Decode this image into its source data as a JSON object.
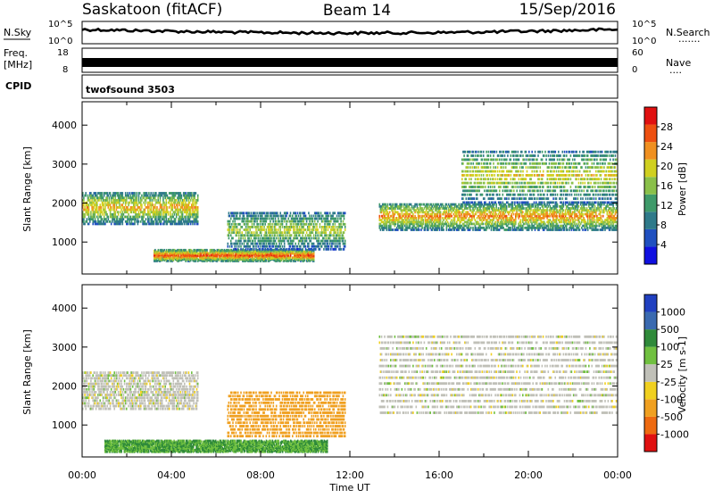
{
  "header": {
    "station": "Saskatoon (fitACF)",
    "beam": "Beam 14",
    "date": "15/Sep/2016"
  },
  "noise_panel": {
    "left_label": "N.Sky",
    "left_ticks": [
      "10^5",
      "10^0"
    ],
    "right_ticks": [
      "10^5",
      "10^0"
    ],
    "right_label": "N.Search",
    "right_dots": "·······"
  },
  "freq_panel": {
    "left_label_1": "Freq.",
    "left_label_2": "[MHz]",
    "left_ticks": [
      "18",
      "8"
    ],
    "right_ticks": [
      "60",
      "0"
    ],
    "right_label": "Nave",
    "right_dots": "····"
  },
  "cpid_panel": {
    "label": "CPID",
    "mode": "twofsound 3503"
  },
  "power_panel": {
    "ylabel": "Slant Range [km]",
    "yticks": [
      "4000",
      "3000",
      "2000",
      "1000"
    ],
    "colorbar_label": "Power [dB]",
    "colorbar_ticks": [
      "28",
      "24",
      "20",
      "16",
      "12",
      "8",
      "4"
    ],
    "colors": [
      "#1010e0",
      "#2050c0",
      "#2f7a8a",
      "#3f9a6a",
      "#8ac04a",
      "#d0d020",
      "#f09020",
      "#ee5010",
      "#e01010"
    ]
  },
  "velocity_panel": {
    "ylabel": "Slant Range [km]",
    "yticks": [
      "4000",
      "3000",
      "2000",
      "1000"
    ],
    "colorbar_label": "Velocity [m s-1]",
    "colorbar_ticks": [
      "1000",
      "500",
      "100",
      "25",
      "-25",
      "-100",
      "-500",
      "-1000"
    ],
    "colors": [
      "#2040c0",
      "#3a6ab0",
      "#2f8a3a",
      "#70c040",
      "#c0c0b8",
      "#f0d020",
      "#f0a020",
      "#ee6a10",
      "#e01010"
    ]
  },
  "xaxis": {
    "ticks": [
      "00:00",
      "04:00",
      "08:00",
      "12:00",
      "16:00",
      "20:00",
      "00:00"
    ],
    "label": "Time UT"
  },
  "chart_data": {
    "type": "heatmap",
    "title": "Saskatoon (fitACF)  Beam 14  15/Sep/2016",
    "xlabel": "Time UT",
    "xlim": [
      "00:00",
      "24:00"
    ],
    "ylabel": "Slant Range [km]",
    "ylim": [
      180,
      4600
    ],
    "power": {
      "label": "Power [dB]",
      "crange": [
        0,
        32
      ],
      "bands": [
        {
          "t_start": 0.0,
          "t_end": 5.2,
          "range_start": 1450,
          "range_end": 2300,
          "peak_db": 22
        },
        {
          "t_start": 3.2,
          "t_end": 10.4,
          "range_start": 500,
          "range_end": 800,
          "peak_db": 28
        },
        {
          "t_start": 6.5,
          "t_end": 11.8,
          "range_start": 800,
          "range_end": 1800,
          "peak_db": 18
        },
        {
          "t_start": 13.3,
          "t_end": 24.0,
          "range_start": 1300,
          "range_end": 2000,
          "peak_db": 24
        },
        {
          "t_start": 17.0,
          "t_end": 24.0,
          "range_start": 2000,
          "range_end": 3400,
          "peak_db": 20
        }
      ]
    },
    "velocity": {
      "label": "Velocity [m s-1]",
      "crange": [
        -1000,
        1000
      ],
      "bands": [
        {
          "t_start": 0.0,
          "t_end": 5.2,
          "range_start": 1400,
          "range_end": 2400,
          "velocity": 0
        },
        {
          "t_start": 1.0,
          "t_end": 11.0,
          "range_start": 300,
          "range_end": 600,
          "velocity": 100
        },
        {
          "t_start": 6.5,
          "t_end": 11.8,
          "range_start": 700,
          "range_end": 1900,
          "velocity": -400
        },
        {
          "t_start": 13.3,
          "t_end": 24.0,
          "range_start": 1300,
          "range_end": 3400,
          "velocity": 0
        }
      ]
    }
  }
}
